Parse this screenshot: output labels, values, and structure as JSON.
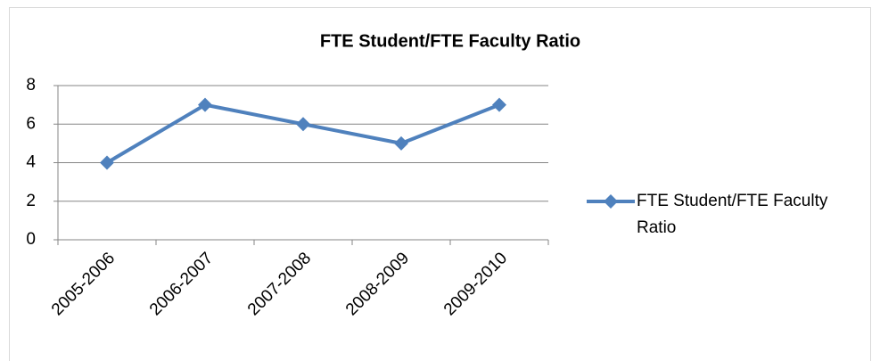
{
  "chart_data": {
    "type": "line",
    "title": "FTE Student/FTE Faculty Ratio",
    "categories": [
      "2005-2006",
      "2006-2007",
      "2007-2008",
      "2008-2009",
      "2009-2010"
    ],
    "series": [
      {
        "name": "FTE Student/FTE Faculty Ratio",
        "color": "#4f81bd",
        "values": [
          4,
          7,
          6,
          5,
          7
        ]
      }
    ],
    "ylim": [
      0,
      8
    ],
    "yticks": [
      0,
      2,
      4,
      6,
      8
    ],
    "grid": true,
    "legend": "right"
  }
}
